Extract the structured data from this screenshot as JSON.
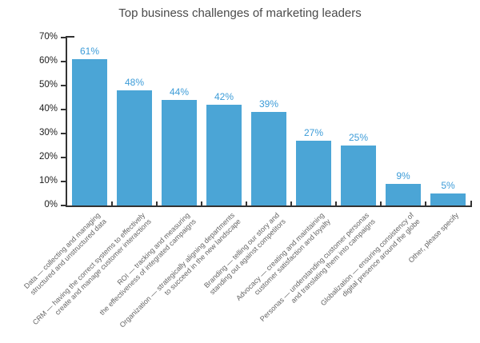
{
  "chart_data": {
    "type": "bar",
    "title": "Top business challenges of marketing leaders",
    "xlabel": "",
    "ylabel": "",
    "ylim": [
      0,
      70
    ],
    "ytick_step": 10,
    "ytick_labels": [
      "0%",
      "10%",
      "20%",
      "30%",
      "40%",
      "50%",
      "60%",
      "70%"
    ],
    "grid": false,
    "legend_position": "none",
    "categories": [
      "Data — collecting and managing structured and unstructured data",
      "CRM — having the correct systems to effectively create and manage customer interactions",
      "ROI — tracking and measuring the effectiveness of integrated campaigns",
      "Organization — strategically aligning departments to succeed in the new landscape",
      "Branding — telling our story and standing out against competitors",
      "Advocacy — creating and maintaining customer satisfaction and loyalty",
      "Personas — understanding customer personas and translating them into campaigns",
      "Globalization — ensuring consistency of digital presence around the globe",
      "Other, please specify"
    ],
    "category_lines": [
      [
        "Data — collecting and managing",
        "structured and unstructured data"
      ],
      [
        "CRM — having the correct systems to effectively",
        "create and manage customer interactions"
      ],
      [
        "ROI — tracking and measuring",
        "the effectiveness of integrated campaigns"
      ],
      [
        "Organization — strategically aligning departments",
        "to succeed in the new landscape"
      ],
      [
        "Branding — telling our story and",
        "standing out against competitors"
      ],
      [
        "Advocacy — creating and maintaining",
        "customer satisfaction and loyalty"
      ],
      [
        "Personas — understanding customer personas",
        "and translating them into campaigns"
      ],
      [
        "Globalization — ensuring consistency of",
        "digital presence around the globe"
      ],
      [
        "Other, please specify"
      ]
    ],
    "values": [
      61,
      48,
      44,
      42,
      39,
      27,
      25,
      9,
      5
    ],
    "value_labels": [
      "61%",
      "48%",
      "44%",
      "42%",
      "39%",
      "27%",
      "25%",
      "9%",
      "5%"
    ],
    "colors": {
      "bar": "#4BA5D6",
      "value_label": "#3D9CD8",
      "axis": "#333333",
      "ytick_text": "#1d1d1d",
      "xtick_text": "#646464",
      "title": "#4a4a4a"
    }
  }
}
